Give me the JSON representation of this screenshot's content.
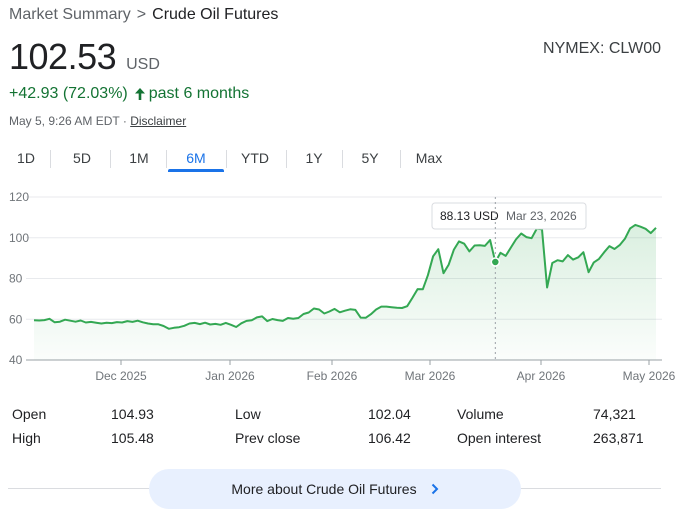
{
  "breadcrumb": {
    "parent": "Market Summary",
    "separator": ">",
    "current": "Crude Oil Futures"
  },
  "exchange": "NYMEX: CLW00",
  "quote": {
    "price": "102.53",
    "currency": "USD",
    "change": "+42.93 (72.03%)",
    "period": "past 6 months",
    "timestamp": "May 5, 9:26 AM EDT",
    "separator": "·",
    "disclaimer": "Disclaimer"
  },
  "tabs": [
    {
      "label": "1D"
    },
    {
      "label": "5D"
    },
    {
      "label": "1M"
    },
    {
      "label": "6M",
      "active": true
    },
    {
      "label": "YTD"
    },
    {
      "label": "1Y"
    },
    {
      "label": "5Y"
    },
    {
      "label": "Max"
    }
  ],
  "tooltip": {
    "value": "88.13 USD",
    "date": "Mar 23, 2026"
  },
  "colors": {
    "line": "#34a853",
    "positive": "#137333",
    "accent": "#1a73e8",
    "button_bg": "#e8f0fe"
  },
  "chart_data": {
    "type": "area",
    "ylim": [
      40,
      120
    ],
    "y_ticks": [
      40,
      60,
      80,
      100,
      120
    ],
    "x_ticks": [
      "Dec 2025",
      "Jan 2026",
      "Feb 2026",
      "Mar 2026",
      "Apr 2026",
      "May 2026"
    ],
    "grid": true,
    "highlight": {
      "date": "Mar 23, 2026",
      "value": 88.13
    },
    "series": [
      {
        "values": [
          59.5,
          59.4,
          59.6,
          60.2,
          58.5,
          58.8,
          59.8,
          59.3,
          58.8,
          59.4,
          58.4,
          58.7,
          58.3,
          57.9,
          58.3,
          58.1,
          58.6,
          58.4,
          59.1,
          58.7,
          59.3,
          58.5,
          57.9,
          57.5,
          57.5,
          56.7,
          55.3,
          55.8,
          56.1,
          56.8,
          57.9,
          58.2,
          57.6,
          58.3,
          57.4,
          57.7,
          57.3,
          58.2,
          57.3,
          56.2,
          58.0,
          59.2,
          59.5,
          60.9,
          61.4,
          59.1,
          60.1,
          59.6,
          59.2,
          60.6,
          60.2,
          60.6,
          62.6,
          63.3,
          65.3,
          64.8,
          62.8,
          63.8,
          65.1,
          63.4,
          64.2,
          64.9,
          64.6,
          60.8,
          60.7,
          62.5,
          64.8,
          66.2,
          66.2,
          65.9,
          65.6,
          65.5,
          66.4,
          70.5,
          74.8,
          74.7,
          81.6,
          90.9,
          94.4,
          82.6,
          86.8,
          94.2,
          98.2,
          97.1,
          93.3,
          96.2,
          96.3,
          96.0,
          98.9,
          88.1,
          92.6,
          91.1,
          95.2,
          99.2,
          102.1,
          100.3,
          99.8,
          104.5,
          104.1,
          75.6,
          87.6,
          89.0,
          88.4,
          91.5,
          89.3,
          90.4,
          92.9,
          83.1,
          87.9,
          89.6,
          92.9,
          95.9,
          94.5,
          96.4,
          99.5,
          104.6,
          106.3,
          105.4,
          104.4,
          102.3,
          104.9
        ]
      }
    ]
  },
  "stats": {
    "left": [
      {
        "label": "Open",
        "value": "104.93"
      },
      {
        "label": "High",
        "value": "105.48"
      }
    ],
    "middle": [
      {
        "label": "Low",
        "value": "102.04"
      },
      {
        "label": "Prev close",
        "value": "106.42"
      }
    ],
    "right": [
      {
        "label": "Volume",
        "value": "74,321"
      },
      {
        "label": "Open interest",
        "value": "263,871"
      }
    ]
  },
  "more_button": {
    "label": "More about Crude Oil Futures",
    "icon": "chevron-right-icon"
  }
}
